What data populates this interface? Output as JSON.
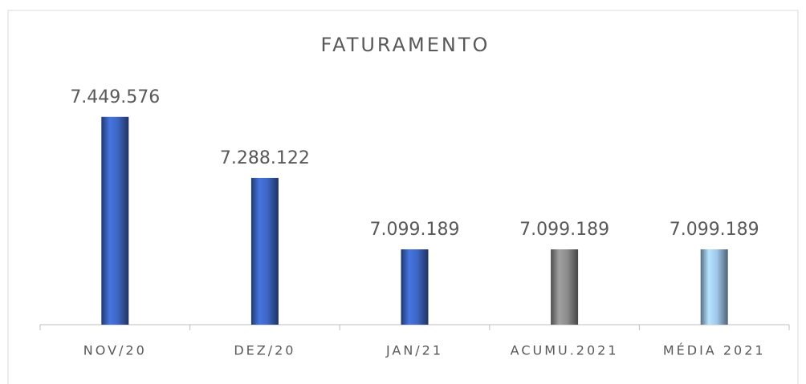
{
  "chart_data": {
    "type": "bar",
    "title": "FATURAMENTO",
    "categories": [
      "NOV/20",
      "DEZ/20",
      "JAN/21",
      "ACUMU.2021",
      "MÉDIA 2021"
    ],
    "values": [
      7449576,
      7288122,
      7099189,
      7099189,
      7099189
    ],
    "value_labels": [
      "7.449.576",
      "7.288.122",
      "7.099.189",
      "7.099.189",
      "7.099.189"
    ],
    "colors": [
      "#3d66c4",
      "#3d66c4",
      "#3d66c4",
      "#8c8c8c",
      "#9fc6ea"
    ],
    "ylim": [
      6900000,
      7500000
    ]
  }
}
